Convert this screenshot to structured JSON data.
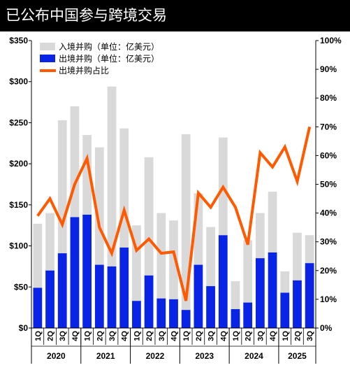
{
  "title": "已公布中国参与跨境交易",
  "chart_data": {
    "type": "bar",
    "quarters": [
      "1Q",
      "2Q",
      "3Q",
      "4Q",
      "1Q",
      "2Q",
      "3Q",
      "4Q",
      "1Q",
      "2Q",
      "3Q",
      "4Q",
      "1Q",
      "2Q",
      "3Q",
      "4Q",
      "1Q",
      "2Q",
      "3Q",
      "4Q",
      "1Q",
      "2Q",
      "3Q"
    ],
    "years": [
      {
        "label": "2020",
        "count": 4
      },
      {
        "label": "2021",
        "count": 4
      },
      {
        "label": "2022",
        "count": 4
      },
      {
        "label": "2023",
        "count": 4
      },
      {
        "label": "2024",
        "count": 4
      },
      {
        "label": "2025",
        "count": 3
      }
    ],
    "series": [
      {
        "name": "入境并购（单位：亿美元）",
        "type": "bar",
        "color": "#d9d9d9",
        "axis": "left",
        "values": [
          127,
          140,
          253,
          270,
          235,
          220,
          294,
          243,
          125,
          208,
          140,
          131,
          236,
          164,
          123,
          232,
          57,
          107,
          140,
          166,
          69,
          116,
          113
        ]
      },
      {
        "name": "出境并购（单位：亿美元）",
        "type": "bar",
        "color": "#0a24e6",
        "axis": "left",
        "values": [
          49,
          70,
          91,
          135,
          138,
          77,
          75,
          98,
          33,
          64,
          36,
          35,
          22,
          77,
          51,
          113,
          23,
          31,
          85,
          92,
          43,
          58,
          79
        ]
      },
      {
        "name": "出境并购占比",
        "type": "line",
        "color": "#ff5a00",
        "axis": "right",
        "values": [
          39,
          45,
          36,
          50,
          59,
          35,
          26,
          41,
          27,
          31,
          26,
          26.5,
          9.5,
          47,
          42,
          49,
          42,
          29,
          61,
          56,
          63,
          51,
          70
        ]
      }
    ],
    "left_axis": {
      "min": 0,
      "max": 350,
      "ticks": [
        "$0",
        "$50",
        "$100",
        "$150",
        "$200",
        "$250",
        "$300",
        "$350"
      ]
    },
    "right_axis": {
      "min": 0,
      "max": 100,
      "ticks": [
        "0%",
        "10%",
        "20%",
        "30%",
        "40%",
        "50%",
        "60%",
        "70%",
        "80%",
        "90%",
        "100%"
      ]
    },
    "legend_position": "top-left"
  }
}
